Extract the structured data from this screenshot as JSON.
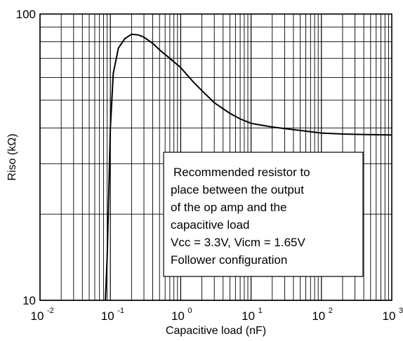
{
  "chart_data": {
    "type": "line",
    "xlabel": "Capacitive load (nF)",
    "ylabel": "Riso (kΩ)",
    "x_scale": "log",
    "y_scale": "log",
    "xlim": [
      0.01,
      1000
    ],
    "ylim": [
      10,
      100
    ],
    "grid": true,
    "x_ticks": [
      {
        "base": "10",
        "exp": "-2",
        "value": 0.01
      },
      {
        "base": "10",
        "exp": "-1",
        "value": 0.1
      },
      {
        "base": "10",
        "exp": "0",
        "value": 1
      },
      {
        "base": "10",
        "exp": "1",
        "value": 10
      },
      {
        "base": "10",
        "exp": "2",
        "value": 100
      },
      {
        "base": "10",
        "exp": "3",
        "value": 1000
      }
    ],
    "y_ticks": [
      {
        "label": "10",
        "value": 10
      },
      {
        "label": "100",
        "value": 100
      }
    ],
    "series": [
      {
        "color": "#000000",
        "x": [
          0.085,
          0.09,
          0.1,
          0.11,
          0.13,
          0.16,
          0.2,
          0.25,
          0.3,
          0.4,
          0.5,
          0.7,
          1.0,
          1.5,
          2,
          3,
          5,
          7,
          10,
          15,
          20,
          30,
          50,
          70,
          100,
          200,
          500,
          1000
        ],
        "y": [
          10,
          14,
          40,
          62,
          76,
          82,
          85,
          84.5,
          83,
          79,
          75,
          70,
          65,
          58,
          54,
          49,
          45,
          43,
          41.5,
          40.8,
          40.3,
          39.8,
          39.2,
          38.8,
          38.4,
          38.1,
          37.9,
          37.8
        ]
      }
    ],
    "annotation": {
      "lines": [
        "Recommended resistor to",
        "place between the output",
        "of the op amp and the",
        "capacitive load",
        "Vcc = 3.3V, Vicm = 1.65V",
        "Follower configuration"
      ]
    }
  }
}
